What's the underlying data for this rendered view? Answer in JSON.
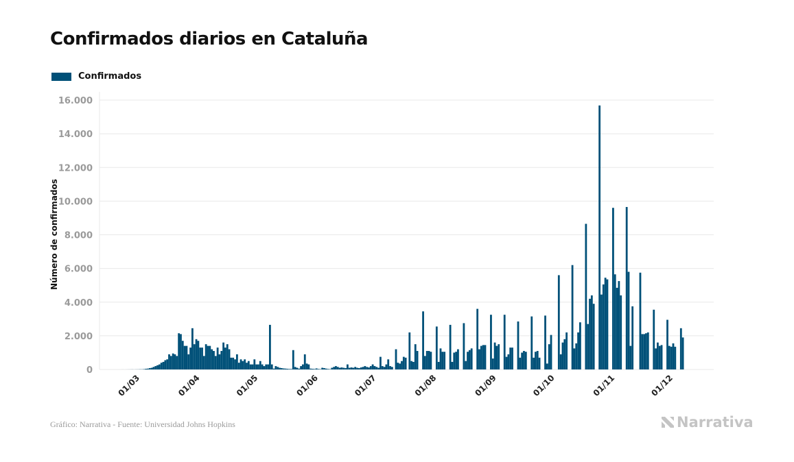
{
  "footer": {
    "source": "Gráfico: Narrativa - Fuente: Universidad Johns Hopkins",
    "logo": "Narrativa"
  },
  "colors": {
    "bar": "#005078",
    "grid": "#e8e8e8",
    "tick": "#9a9a9a"
  },
  "chart_data": {
    "type": "bar",
    "title": "Confirmados diarios en Cataluña",
    "legend": [
      "Confirmados"
    ],
    "legend_position": "top-left",
    "xlabel": "",
    "ylabel": "Número de confirmados",
    "ylim": [
      0,
      16000
    ],
    "yticks": [
      0,
      2000,
      4000,
      6000,
      8000,
      10000,
      12000,
      14000,
      16000
    ],
    "ytick_labels": [
      "0",
      "2.000",
      "4.000",
      "6.000",
      "8.000",
      "10.000",
      "12.000",
      "14.000",
      "16.000"
    ],
    "xtick_labels": [
      "01/03",
      "01/04",
      "01/05",
      "01/06",
      "01/07",
      "01/08",
      "01/09",
      "01/10",
      "01/11",
      "01/12"
    ],
    "xtick_day_offsets": [
      0,
      31,
      61,
      92,
      122,
      153,
      184,
      214,
      245,
      275
    ],
    "start_date": "2020-02-26",
    "start_offset_days": -4,
    "grid": true,
    "series": [
      {
        "name": "Confirmados",
        "values": [
          1,
          0,
          1,
          2,
          3,
          5,
          2,
          5,
          6,
          10,
          10,
          20,
          40,
          50,
          80,
          100,
          150,
          200,
          250,
          300,
          400,
          450,
          550,
          600,
          900,
          800,
          950,
          900,
          800,
          2150,
          2100,
          1700,
          1400,
          1400,
          900,
          1300,
          2450,
          1500,
          1800,
          1700,
          1300,
          1300,
          800,
          1500,
          1400,
          1400,
          1200,
          1100,
          800,
          1300,
          900,
          1100,
          1600,
          1300,
          1500,
          1200,
          700,
          700,
          600,
          900,
          400,
          600,
          500,
          600,
          400,
          500,
          300,
          300,
          600,
          300,
          300,
          500,
          300,
          200,
          300,
          300,
          2650,
          300,
          50,
          200,
          150,
          100,
          80,
          60,
          50,
          40,
          30,
          30,
          1150,
          150,
          100,
          50,
          200,
          300,
          900,
          350,
          300,
          50,
          40,
          30,
          60,
          30,
          20,
          100,
          80,
          50,
          30,
          20,
          100,
          150,
          200,
          150,
          100,
          120,
          100,
          80,
          300,
          100,
          120,
          100,
          150,
          100,
          80,
          120,
          150,
          200,
          150,
          120,
          200,
          300,
          200,
          150,
          100,
          750,
          200,
          150,
          300,
          600,
          200,
          150,
          0,
          1200,
          400,
          350,
          500,
          750,
          700,
          0,
          2200,
          500,
          450,
          1500,
          1100,
          0,
          0,
          3450,
          800,
          1100,
          1100,
          1050,
          0,
          0,
          2550,
          450,
          1250,
          1050,
          1050,
          0,
          0,
          2650,
          450,
          1000,
          1050,
          1200,
          0,
          0,
          2750,
          500,
          1050,
          1150,
          1250,
          0,
          0,
          3600,
          1200,
          1400,
          1450,
          1450,
          0,
          0,
          3250,
          650,
          1600,
          1400,
          1500,
          0,
          0,
          3250,
          750,
          900,
          1300,
          1300,
          0,
          0,
          2850,
          700,
          1000,
          1100,
          1050,
          0,
          0,
          3150,
          700,
          1050,
          1100,
          700,
          0,
          0,
          3200,
          350,
          1500,
          2050,
          0,
          0,
          0,
          5600,
          900,
          1600,
          1800,
          2200,
          0,
          0,
          6200,
          1250,
          1550,
          2200,
          2800,
          0,
          0,
          8650,
          2700,
          4200,
          4400,
          3900,
          0,
          0,
          15680,
          4450,
          5050,
          5450,
          5350,
          0,
          0,
          9600,
          5650,
          4850,
          5250,
          4400,
          0,
          0,
          9650,
          5800,
          1400,
          3750,
          0,
          0,
          0,
          5750,
          2100,
          2100,
          2150,
          2200,
          0,
          0,
          3550,
          1250,
          1600,
          1400,
          1450,
          0,
          0,
          2950,
          1400,
          1350,
          1550,
          1350,
          0,
          0,
          2450,
          1900
        ]
      }
    ]
  }
}
